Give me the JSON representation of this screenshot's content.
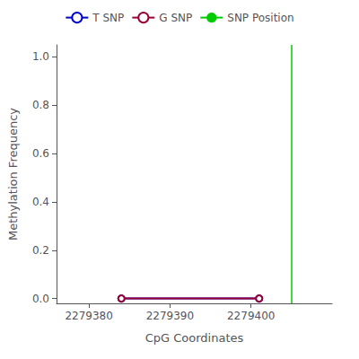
{
  "chart_data": {
    "type": "line",
    "xlabel": "CpG Coordinates",
    "ylabel": "Methylation Frequency",
    "x": [
      2279384,
      2279401
    ],
    "series": [
      {
        "name": "T SNP",
        "color": "#0000cc",
        "marker": "circle",
        "values": [
          0.0,
          0.0
        ]
      },
      {
        "name": "G SNP",
        "color": "#990033",
        "marker": "circle",
        "values": [
          0.0,
          0.0
        ]
      },
      {
        "name": "SNP Position",
        "type": "vline",
        "color": "#00cc00",
        "x": 2279405
      }
    ],
    "xlim": [
      2279376,
      2279410
    ],
    "ylim": [
      -0.02,
      1.05
    ],
    "xticks": [
      2279380,
      2279390,
      2279400
    ],
    "yticks": [
      {
        "value": 0,
        "label": "0.0"
      },
      0.2,
      0.4,
      0.6,
      0.8,
      {
        "value": 1,
        "label": "1.0"
      }
    ],
    "grid": false,
    "legend": "top"
  }
}
